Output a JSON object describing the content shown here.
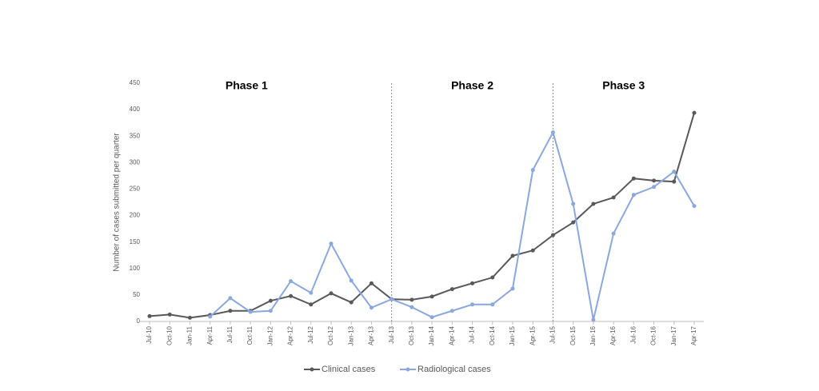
{
  "chart_data": {
    "type": "line",
    "y_label": "Number of cases submitted per quarter",
    "categories": [
      "Jul-10",
      "Oct-10",
      "Jan-11",
      "Apr-11",
      "Jul-11",
      "Oct-11",
      "Jan-12",
      "Apr-12",
      "Jul-12",
      "Oct-12",
      "Jan-13",
      "Apr-13",
      "Jul-13",
      "Oct-13",
      "Jan-14",
      "Apr-14",
      "Jul-14",
      "Oct-14",
      "Jan-15",
      "Apr-15",
      "Jul-15",
      "Oct-15",
      "Jan-16",
      "Apr-16",
      "Jul-16",
      "Oct-16",
      "Jan-17",
      "Apr-17"
    ],
    "series": [
      {
        "name": "Clinical cases",
        "color": "#595959",
        "values": [
          10,
          13,
          7,
          12,
          20,
          20,
          39,
          48,
          32,
          53,
          36,
          72,
          42,
          41,
          47,
          61,
          72,
          83,
          124,
          134,
          163,
          187,
          222,
          234,
          270,
          266,
          264,
          394
        ]
      },
      {
        "name": "Radiological cases",
        "color": "#8aa8dc",
        "values": [
          null,
          null,
          null,
          9,
          44,
          18,
          20,
          76,
          54,
          147,
          77,
          26,
          42,
          27,
          8,
          20,
          32,
          32,
          62,
          286,
          357,
          222,
          3,
          166,
          239,
          254,
          283,
          218
        ]
      }
    ],
    "ylim": [
      0,
      450
    ],
    "yticks": [
      0,
      50,
      100,
      150,
      200,
      250,
      300,
      350,
      400,
      450
    ],
    "phases": [
      "Phase 1",
      "Phase 2",
      "Phase 3"
    ],
    "phase_boundaries": [
      "Jul-13",
      "Jul-15"
    ],
    "legend": "bottom"
  }
}
